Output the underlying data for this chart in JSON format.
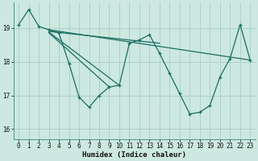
{
  "xlabel": "Humidex (Indice chaleur)",
  "bg_color": "#cce8e0",
  "grid_color": "#a8cec8",
  "line_color": "#1a6e60",
  "xlim": [
    -0.5,
    23.5
  ],
  "ylim": [
    15.7,
    19.75
  ],
  "yticks": [
    16,
    17,
    18,
    19
  ],
  "xticks": [
    0,
    1,
    2,
    3,
    4,
    5,
    6,
    7,
    8,
    9,
    10,
    11,
    12,
    13,
    14,
    15,
    16,
    17,
    18,
    19,
    20,
    21,
    22,
    23
  ],
  "series": [
    {
      "x": [
        0,
        1,
        2,
        3,
        4,
        5,
        6,
        7,
        8,
        9,
        10,
        11,
        12,
        13,
        14,
        15,
        16,
        17,
        18,
        19,
        20,
        21,
        22,
        23
      ],
      "y": [
        19.1,
        19.55,
        19.05,
        18.95,
        18.85,
        17.95,
        16.95,
        16.65,
        17.0,
        17.25,
        17.3,
        18.55,
        18.65,
        18.8,
        18.25,
        17.65,
        17.05,
        16.45,
        16.5,
        16.7,
        17.55,
        18.1,
        19.1,
        18.05
      ]
    },
    {
      "x": [
        3,
        23
      ],
      "y": [
        18.95,
        18.05
      ]
    },
    {
      "x": [
        3,
        14
      ],
      "y": [
        18.9,
        18.55
      ]
    },
    {
      "x": [
        3,
        10
      ],
      "y": [
        18.88,
        17.3
      ]
    },
    {
      "x": [
        3,
        9
      ],
      "y": [
        18.86,
        17.25
      ]
    }
  ]
}
